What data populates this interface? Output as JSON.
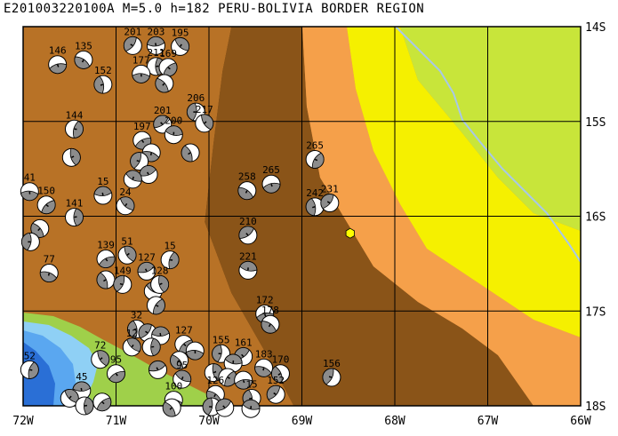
{
  "title": "E201003220100A  M=5.0  h=182  PERU-BOLIVIA BORDER REGION",
  "lon_labels": [
    "72W",
    "71W",
    "70W",
    "69W",
    "68W",
    "67W",
    "66W"
  ],
  "lat_labels": [
    "14S",
    "15S",
    "16S",
    "17S",
    "18S"
  ],
  "extent": {
    "lon_min": -72,
    "lon_max": -66,
    "lat_min": -18,
    "lat_max": -14
  },
  "colors": {
    "ocean_deep": "#2a6fd6",
    "ocean_mid": "#5aa7f0",
    "ocean_shallow": "#8fd0f5",
    "coast_lowland": "#9fd04a",
    "lowland_green": "#c8e53a",
    "yellow": "#f5f000",
    "orange_light": "#f5a04a",
    "orange": "#e08a3a",
    "brown": "#b87226",
    "dark_brown": "#8a5418",
    "river": "#a8c8e8",
    "event_star": "#ffff00"
  },
  "event": {
    "lon": -68.48,
    "lat": -16.18
  },
  "mechanisms": [
    {
      "label": "146",
      "lon": -71.63,
      "lat": -14.4
    },
    {
      "label": "135",
      "lon": -71.35,
      "lat": -14.35
    },
    {
      "label": "152",
      "lon": -71.14,
      "lat": -14.61
    },
    {
      "label": "201",
      "lon": -70.82,
      "lat": -14.2
    },
    {
      "label": "203",
      "lon": -70.57,
      "lat": -14.2
    },
    {
      "label": "195",
      "lon": -70.31,
      "lat": -14.21
    },
    {
      "label": "211",
      "lon": -70.57,
      "lat": -14.42
    },
    {
      "label": "169",
      "lon": -70.44,
      "lat": -14.43
    },
    {
      "label": "177",
      "lon": -70.73,
      "lat": -14.5
    },
    {
      "label": "",
      "lon": -70.48,
      "lat": -14.6
    },
    {
      "label": "206",
      "lon": -70.14,
      "lat": -14.9
    },
    {
      "label": "201",
      "lon": -70.5,
      "lat": -15.03
    },
    {
      "label": "200",
      "lon": -70.38,
      "lat": -15.14
    },
    {
      "label": "217",
      "lon": -70.05,
      "lat": -15.02
    },
    {
      "label": "144",
      "lon": -71.45,
      "lat": -15.08
    },
    {
      "label": "197",
      "lon": -70.72,
      "lat": -15.2
    },
    {
      "label": "",
      "lon": -70.62,
      "lat": -15.33
    },
    {
      "label": "",
      "lon": -70.2,
      "lat": -15.33
    },
    {
      "label": "",
      "lon": -70.75,
      "lat": -15.42
    },
    {
      "label": "",
      "lon": -70.65,
      "lat": -15.56
    },
    {
      "label": "",
      "lon": -70.82,
      "lat": -15.61
    },
    {
      "label": "",
      "lon": -71.48,
      "lat": -15.38
    },
    {
      "label": "265",
      "lon": -68.86,
      "lat": -15.4
    },
    {
      "label": "265",
      "lon": -69.33,
      "lat": -15.66
    },
    {
      "label": "258",
      "lon": -69.59,
      "lat": -15.73
    },
    {
      "label": "242",
      "lon": -68.86,
      "lat": -15.9
    },
    {
      "label": "231",
      "lon": -68.7,
      "lat": -15.86
    },
    {
      "label": "15",
      "lon": -71.14,
      "lat": -15.78
    },
    {
      "label": "24",
      "lon": -70.9,
      "lat": -15.89
    },
    {
      "label": "141",
      "lon": -71.45,
      "lat": -16.01
    },
    {
      "label": "150",
      "lon": -71.75,
      "lat": -15.88
    },
    {
      "label": "41",
      "lon": -71.93,
      "lat": -15.74
    },
    {
      "label": "",
      "lon": -71.82,
      "lat": -16.13
    },
    {
      "label": "",
      "lon": -71.92,
      "lat": -16.27
    },
    {
      "label": "210",
      "lon": -69.58,
      "lat": -16.2
    },
    {
      "label": "221",
      "lon": -69.58,
      "lat": -16.57
    },
    {
      "label": "51",
      "lon": -70.88,
      "lat": -16.41
    },
    {
      "label": "15",
      "lon": -70.42,
      "lat": -16.46
    },
    {
      "label": "139",
      "lon": -71.11,
      "lat": -16.45
    },
    {
      "label": "77",
      "lon": -71.72,
      "lat": -16.6
    },
    {
      "label": "",
      "lon": -71.11,
      "lat": -16.67
    },
    {
      "label": "149",
      "lon": -70.93,
      "lat": -16.72
    },
    {
      "label": "127",
      "lon": -70.67,
      "lat": -16.58
    },
    {
      "label": "",
      "lon": -70.6,
      "lat": -16.79
    },
    {
      "label": "128",
      "lon": -70.53,
      "lat": -16.72
    },
    {
      "label": "",
      "lon": -70.57,
      "lat": -16.94
    },
    {
      "label": "172",
      "lon": -69.4,
      "lat": -17.03
    },
    {
      "label": "178",
      "lon": -69.34,
      "lat": -17.14
    },
    {
      "label": "32",
      "lon": -70.78,
      "lat": -17.19
    },
    {
      "label": "",
      "lon": -70.66,
      "lat": -17.23
    },
    {
      "label": "",
      "lon": -70.52,
      "lat": -17.26
    },
    {
      "label": "12",
      "lon": -70.83,
      "lat": -17.38
    },
    {
      "label": "",
      "lon": -70.62,
      "lat": -17.38
    },
    {
      "label": "127",
      "lon": -70.27,
      "lat": -17.35
    },
    {
      "label": "",
      "lon": -70.15,
      "lat": -17.42
    },
    {
      "label": "",
      "lon": -70.32,
      "lat": -17.52
    },
    {
      "label": "155",
      "lon": -69.87,
      "lat": -17.45
    },
    {
      "label": "161",
      "lon": -69.63,
      "lat": -17.48
    },
    {
      "label": "",
      "lon": -69.74,
      "lat": -17.55
    },
    {
      "label": "72",
      "lon": -71.17,
      "lat": -17.51
    },
    {
      "label": "52",
      "lon": -71.93,
      "lat": -17.62
    },
    {
      "label": "95",
      "lon": -71.0,
      "lat": -17.66
    },
    {
      "label": "183",
      "lon": -69.41,
      "lat": -17.6
    },
    {
      "label": "170",
      "lon": -69.23,
      "lat": -17.66
    },
    {
      "label": "156",
      "lon": -68.68,
      "lat": -17.7
    },
    {
      "label": "",
      "lon": -70.55,
      "lat": -17.62
    },
    {
      "label": "95",
      "lon": -70.29,
      "lat": -17.72
    },
    {
      "label": "",
      "lon": -69.95,
      "lat": -17.65
    },
    {
      "label": "",
      "lon": -69.8,
      "lat": -17.7
    },
    {
      "label": "",
      "lon": -69.63,
      "lat": -17.73
    },
    {
      "label": "126",
      "lon": -69.93,
      "lat": -17.88
    },
    {
      "label": "15",
      "lon": -69.54,
      "lat": -17.92
    },
    {
      "label": "152",
      "lon": -69.28,
      "lat": -17.88
    },
    {
      "label": "45",
      "lon": -71.37,
      "lat": -17.84
    },
    {
      "label": "",
      "lon": -71.5,
      "lat": -17.92
    },
    {
      "label": "",
      "lon": -71.34,
      "lat": -18.0
    },
    {
      "label": "",
      "lon": -71.15,
      "lat": -17.96
    },
    {
      "label": "100",
      "lon": -70.38,
      "lat": -17.94
    },
    {
      "label": "",
      "lon": -70.4,
      "lat": -18.02
    },
    {
      "label": "",
      "lon": -69.97,
      "lat": -18.01
    },
    {
      "label": "",
      "lon": -69.83,
      "lat": -18.02
    },
    {
      "label": "",
      "lon": -69.55,
      "lat": -18.03
    }
  ]
}
